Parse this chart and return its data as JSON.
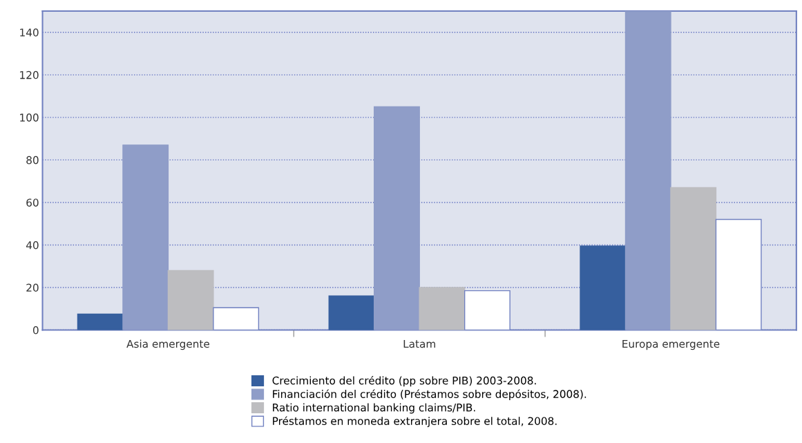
{
  "chart_data": {
    "type": "bar",
    "categories": [
      "Asia emergente",
      "Latam",
      "Europa emergente"
    ],
    "series": [
      {
        "name": "Crecimiento del crédito (pp sobre PIB) 2003-2008.",
        "color": "#365f9e",
        "values": [
          7.5,
          16,
          39.5
        ]
      },
      {
        "name": "Financiación del crédito (Préstamos sobre depósitos, 2008).",
        "color": "#8f9dc8",
        "values": [
          87,
          105,
          150
        ]
      },
      {
        "name": "Ratio international banking claims/PIB.",
        "color": "#bdbdc0",
        "values": [
          28,
          20,
          67
        ]
      },
      {
        "name": "Préstamos en moneda extranjera sobre el total, 2008.",
        "color": "#ffffff",
        "values": [
          10.5,
          18.5,
          52
        ]
      }
    ],
    "ylim": [
      0,
      150
    ],
    "yticks": [
      0,
      20,
      40,
      60,
      80,
      100,
      120,
      140
    ],
    "grid": "y",
    "legend": "bottom"
  }
}
